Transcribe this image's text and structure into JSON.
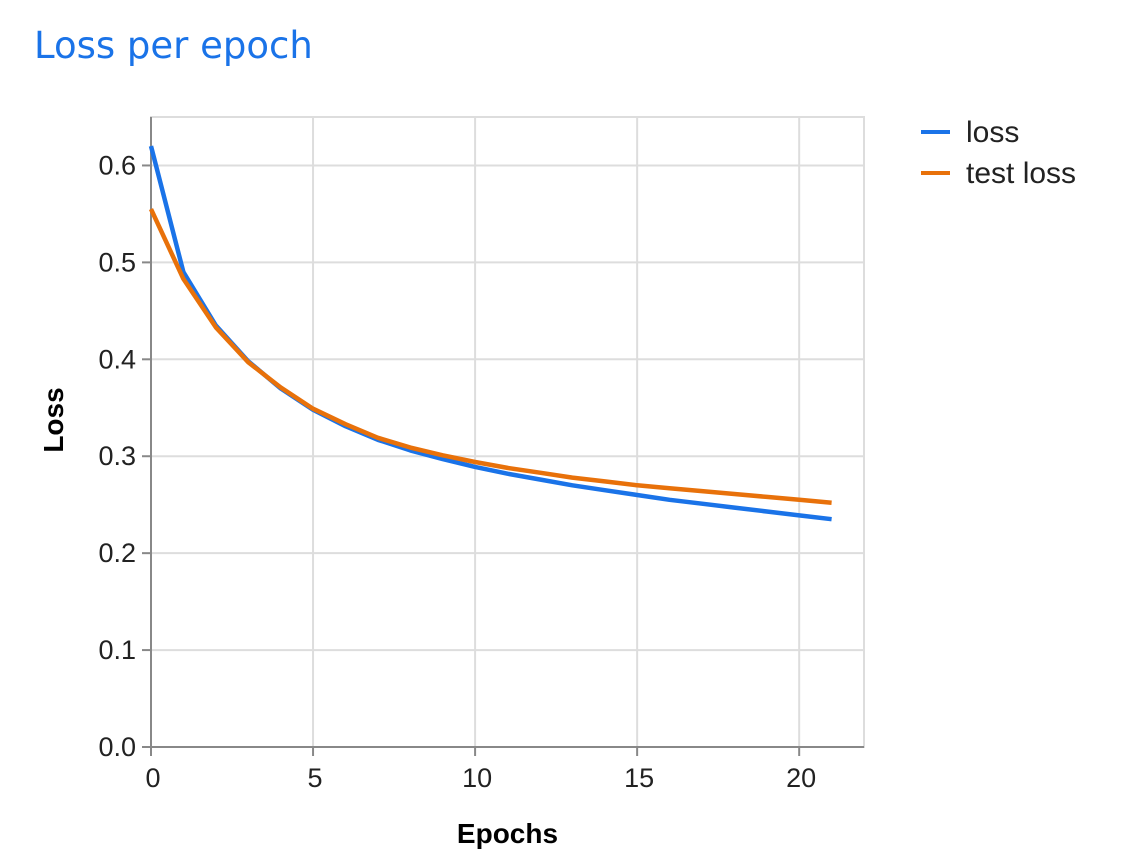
{
  "title": "Loss per epoch",
  "chart_data": {
    "type": "line",
    "xlabel": "Epochs",
    "ylabel": "Loss",
    "xlim": [
      0,
      22
    ],
    "ylim": [
      0,
      0.65
    ],
    "xticks": [
      0,
      5,
      10,
      15,
      20
    ],
    "yticks": [
      0.0,
      0.1,
      0.2,
      0.3,
      0.4,
      0.5,
      0.6
    ],
    "ytick_labels": [
      "0.0",
      "0.1",
      "0.2",
      "0.3",
      "0.4",
      "0.5",
      "0.6"
    ],
    "xtick_labels": [
      "0",
      "5",
      "10",
      "15",
      "20"
    ],
    "grid": true,
    "legend_position": "top-right",
    "x": [
      0,
      1,
      2,
      3,
      4,
      5,
      6,
      7,
      8,
      9,
      10,
      11,
      12,
      13,
      14,
      15,
      16,
      17,
      18,
      19,
      20,
      21
    ],
    "series": [
      {
        "name": "loss",
        "color": "#1a73e8",
        "values": [
          0.62,
          0.49,
          0.435,
          0.398,
          0.37,
          0.348,
          0.331,
          0.317,
          0.306,
          0.297,
          0.289,
          0.282,
          0.276,
          0.27,
          0.265,
          0.26,
          0.255,
          0.251,
          0.247,
          0.243,
          0.239,
          0.235
        ]
      },
      {
        "name": "test loss",
        "color": "#e8710a",
        "values": [
          0.555,
          0.483,
          0.433,
          0.397,
          0.371,
          0.349,
          0.333,
          0.319,
          0.309,
          0.301,
          0.294,
          0.288,
          0.283,
          0.278,
          0.274,
          0.27,
          0.267,
          0.264,
          0.261,
          0.258,
          0.255,
          0.252
        ]
      }
    ]
  }
}
